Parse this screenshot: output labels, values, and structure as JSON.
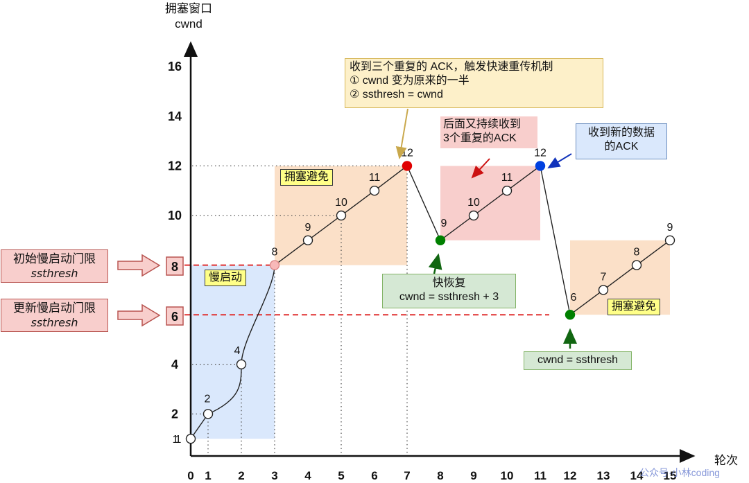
{
  "chart_data": {
    "type": "line",
    "title": "",
    "xlabel": "轮次",
    "ylabel": "拥塞窗口 cwnd",
    "x_ticks": [
      "0",
      "1",
      "2",
      "3",
      "4",
      "5",
      "6",
      "7",
      "8",
      "9",
      "10",
      "11",
      "12",
      "13",
      "14",
      "15"
    ],
    "y_ticks": [
      "1",
      "2",
      "4",
      "6",
      "8",
      "10",
      "12",
      "14",
      "16"
    ],
    "xlim": [
      0,
      15
    ],
    "ylim": [
      0,
      16
    ],
    "grid": false,
    "series": [
      {
        "name": "cwnd",
        "points": [
          {
            "x": 0,
            "y": 1,
            "label": "1",
            "color": "#ffffff"
          },
          {
            "x": 1,
            "y": 2,
            "label": "2",
            "color": "#ffffff"
          },
          {
            "x": 2,
            "y": 4,
            "label": "4",
            "color": "#ffffff"
          },
          {
            "x": 3,
            "y": 8,
            "label": "8",
            "color": "#f8b9b9"
          },
          {
            "x": 4,
            "y": 9,
            "label": "9",
            "color": "#ffffff"
          },
          {
            "x": 5,
            "y": 10,
            "label": "10",
            "color": "#ffffff"
          },
          {
            "x": 6,
            "y": 11,
            "label": "11",
            "color": "#ffffff"
          },
          {
            "x": 7,
            "y": 12,
            "label": "12",
            "color": "#e00000"
          },
          {
            "x": 8,
            "y": 9,
            "label": "9",
            "color": "#008000"
          },
          {
            "x": 9,
            "y": 10,
            "label": "10",
            "color": "#ffffff"
          },
          {
            "x": 10,
            "y": 11,
            "label": "11",
            "color": "#ffffff"
          },
          {
            "x": 11,
            "y": 12,
            "label": "12",
            "color": "#0040e0"
          },
          {
            "x": 12,
            "y": 6,
            "label": "6",
            "color": "#008000"
          },
          {
            "x": 13,
            "y": 7,
            "label": "7",
            "color": "#ffffff"
          },
          {
            "x": 14,
            "y": 8,
            "label": "8",
            "color": "#ffffff"
          },
          {
            "x": 15,
            "y": 9,
            "label": "9",
            "color": "#ffffff"
          }
        ]
      }
    ],
    "thresholds": [
      {
        "name": "initial_ssthresh",
        "y": 8,
        "label": "8",
        "color": "#e03030"
      },
      {
        "name": "updated_ssthresh",
        "y": 6,
        "label": "6",
        "color": "#e03030"
      }
    ],
    "regions": [
      {
        "name": "slow-start",
        "x": [
          0,
          3
        ],
        "y": [
          1,
          8
        ],
        "color": "#dae8fc",
        "label": "慢启动"
      },
      {
        "name": "congestion-avoidance-1",
        "x": [
          3,
          7
        ],
        "y": [
          8,
          12
        ],
        "color": "#fbe0c8",
        "label": "拥塞避免"
      },
      {
        "name": "fast-recovery",
        "x": [
          8,
          11
        ],
        "y": [
          9,
          12
        ],
        "color": "#f8cecc",
        "label": ""
      },
      {
        "name": "congestion-avoidance-2",
        "x": [
          12,
          15
        ],
        "y": [
          6,
          9
        ],
        "color": "#fbe0c8",
        "label": "拥塞避免"
      }
    ],
    "annotations": [
      "收到三个重复的 ACK，触发快速重传机制",
      "① cwnd 变为原来的一半",
      "② ssthresh = cwnd",
      "后面又持续收到 3个重复的ACK",
      "收到新的数据 的ACK",
      "快恢复 cwnd = ssthresh + 3",
      "cwnd = ssthresh",
      "初始慢启动门限 ssthresh",
      "更新慢启动门限 ssthresh"
    ]
  },
  "axis": {
    "y_title_line1": "拥塞窗口",
    "y_title_line2": "cwnd",
    "x_title": "轮次"
  },
  "notes": {
    "fast_retransmit": {
      "line1": "收到三个重复的 ACK，触发快速重传机制",
      "line2": "① cwnd 变为原来的一半",
      "line3": "② ssthresh = cwnd"
    },
    "dup_ack_again": {
      "line1": "后面又持续收到",
      "line2": "3个重复的ACK"
    },
    "new_ack": {
      "line1": "收到新的数据",
      "line2": "的ACK"
    },
    "fast_recovery": {
      "line1": "快恢复",
      "line2": "cwnd = ssthresh + 3"
    },
    "cwnd_eq_ssthresh": "cwnd = ssthresh",
    "initial_threshold": {
      "line1": "初始慢启动门限",
      "line2": "ssthresh"
    },
    "updated_threshold": {
      "line1": "更新慢启动门限",
      "line2": "ssthresh"
    }
  },
  "tags": {
    "congestion_avoidance_1": "拥塞避免",
    "slow_start": "慢启动",
    "congestion_avoidance_2": "拥塞避免"
  },
  "watermark": "公众号·小林coding"
}
